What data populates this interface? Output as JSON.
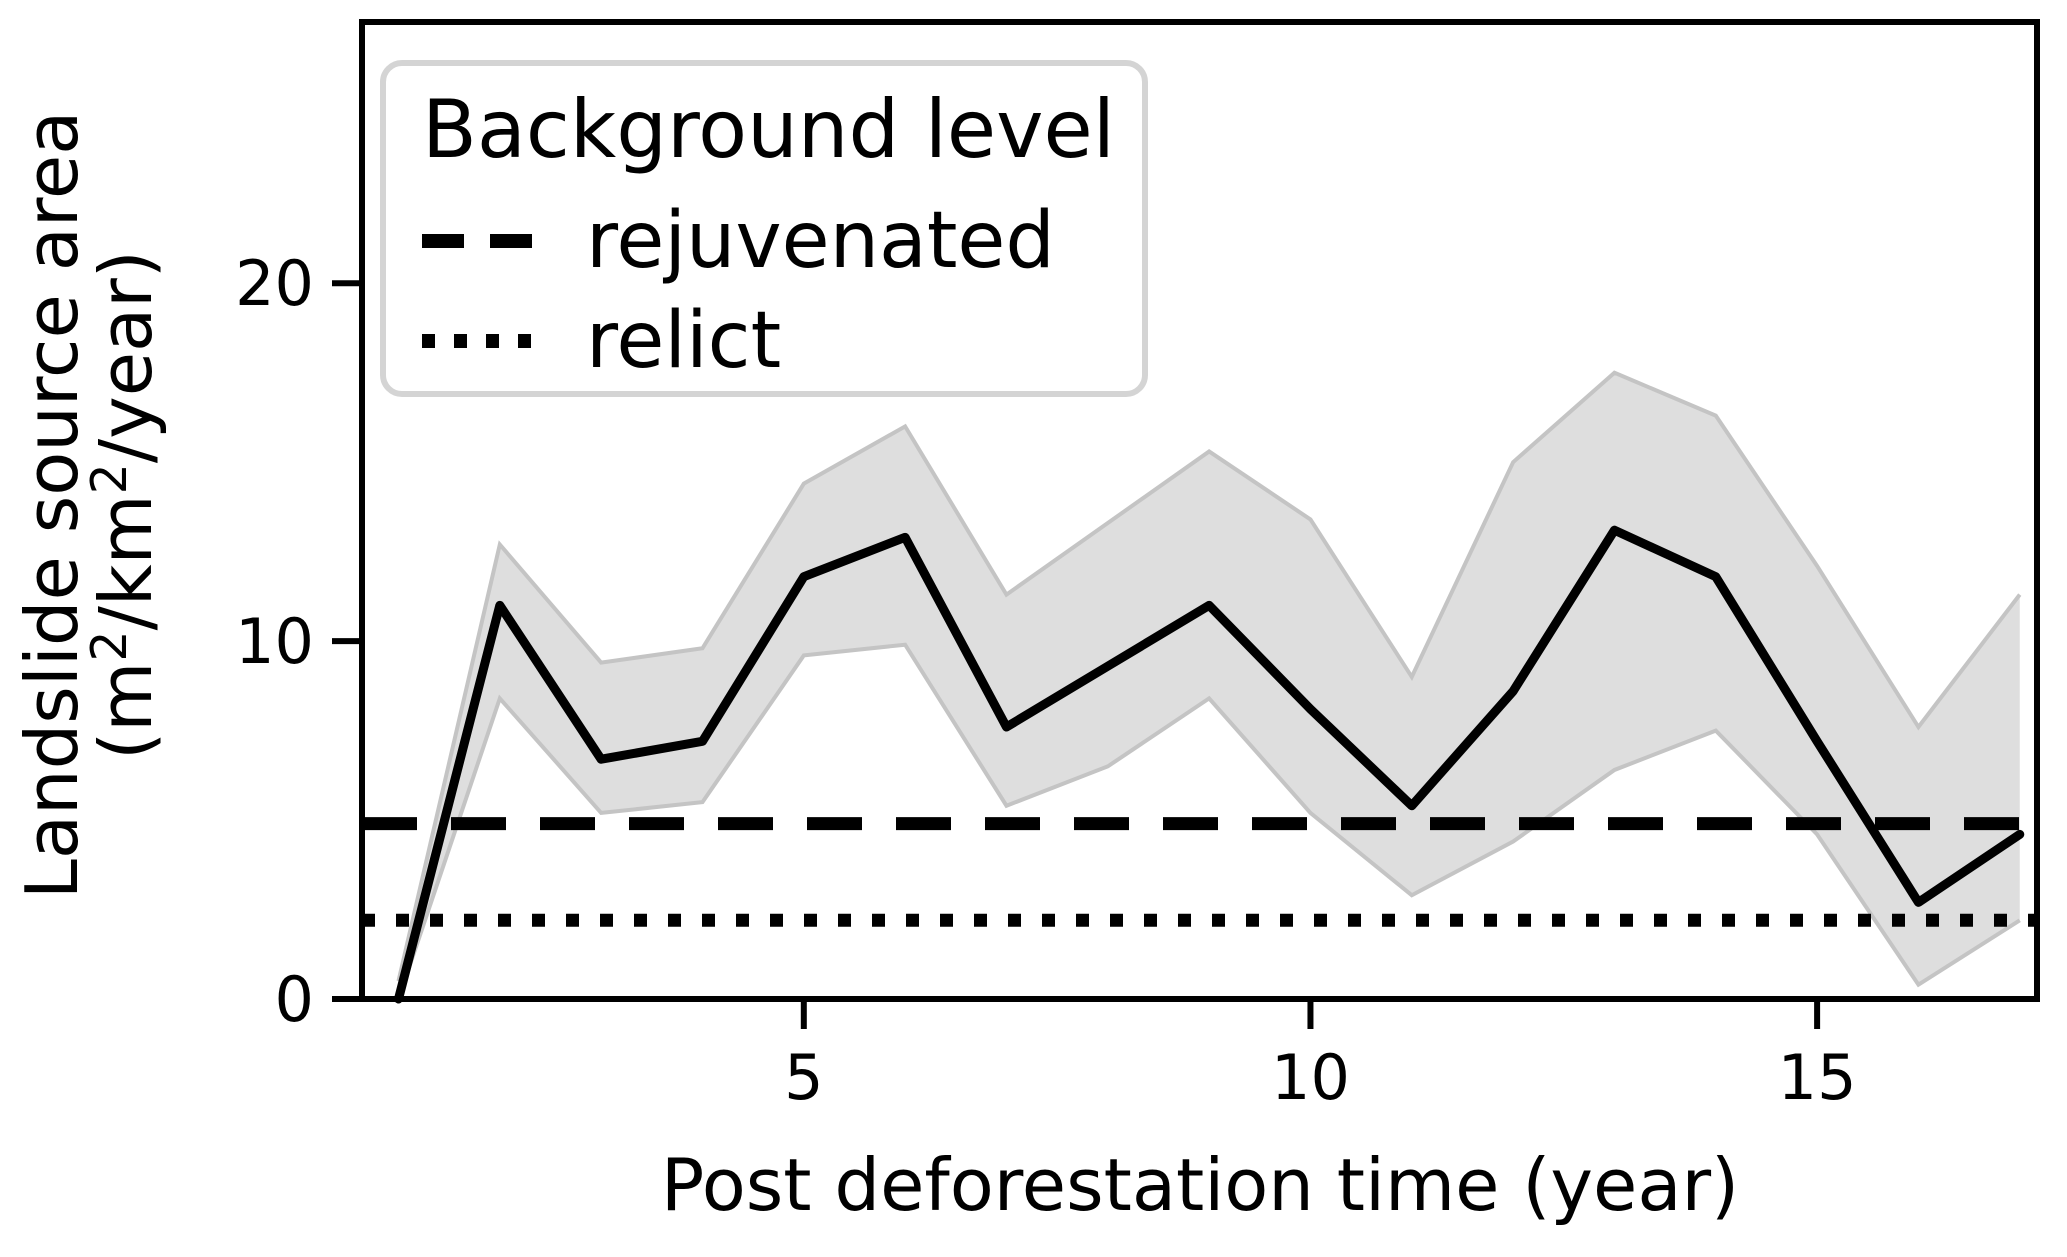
{
  "chart_data": {
    "type": "line",
    "title": "",
    "xlabel": "Post deforestation time (year)",
    "ylabel_line1": "Landslide source area",
    "ylabel_line2_parts": [
      {
        "text": "(m",
        "sup": false
      },
      {
        "text": "2",
        "sup": true
      },
      {
        "text": "/km",
        "sup": false
      },
      {
        "text": "2",
        "sup": true
      },
      {
        "text": "/year)",
        "sup": false
      }
    ],
    "x": [
      1,
      2,
      3,
      4,
      5,
      6,
      7,
      8,
      9,
      10,
      11,
      12,
      13,
      14,
      15,
      16,
      17
    ],
    "series": [
      {
        "name": "landslide source area mean",
        "values": [
          0.0,
          11.0,
          6.7,
          7.2,
          11.8,
          12.9,
          7.6,
          9.3,
          11.0,
          8.1,
          5.4,
          8.6,
          13.1,
          11.8,
          7.2,
          2.7,
          4.6
        ]
      },
      {
        "name": "uncertainty band lower",
        "values": [
          0.0,
          8.4,
          5.2,
          5.5,
          9.6,
          9.9,
          5.4,
          6.5,
          8.4,
          5.2,
          2.9,
          4.4,
          6.4,
          7.5,
          4.6,
          0.4,
          2.2
        ]
      },
      {
        "name": "uncertainty band upper",
        "values": [
          0.5,
          12.7,
          9.4,
          9.8,
          14.4,
          16.0,
          11.3,
          13.3,
          15.3,
          13.4,
          9.0,
          15.0,
          17.5,
          16.3,
          12.1,
          7.6,
          11.3
        ]
      }
    ],
    "hlines": [
      {
        "label": "rejuvenated",
        "value": 4.9,
        "style": "dashed"
      },
      {
        "label": "relict",
        "value": 2.2,
        "style": "dotted"
      }
    ],
    "xticks": [
      5,
      10,
      15
    ],
    "yticks": [
      0,
      10,
      20
    ],
    "xlim": [
      0.64,
      17.17
    ],
    "ylim": [
      0,
      27.3
    ],
    "grid": false,
    "legend": {
      "title": "Background level",
      "position": "upper left",
      "items": [
        {
          "label": "rejuvenated",
          "style": "dashed"
        },
        {
          "label": "relict",
          "style": "dotted"
        }
      ]
    },
    "colors": {
      "line": "#000000",
      "band_fill": "#dedede",
      "band_edge": "#c4c4c4",
      "hline": "#000000",
      "legend_border": "#d4d4d4",
      "text": "#000000"
    }
  }
}
